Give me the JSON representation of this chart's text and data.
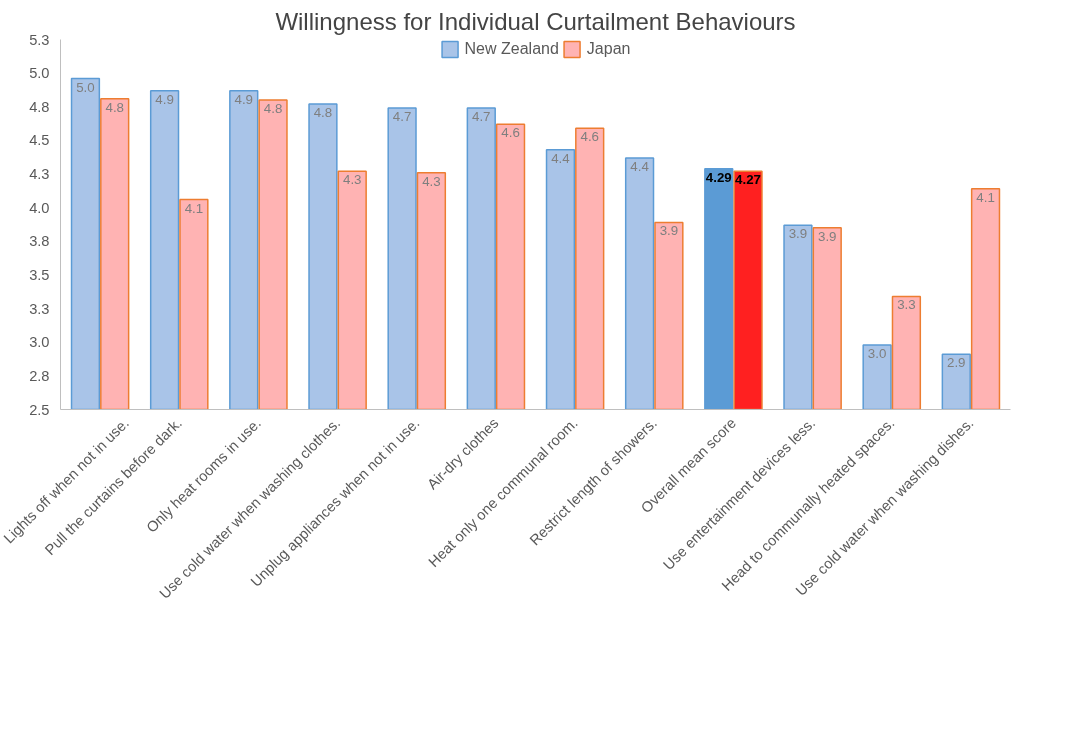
{
  "chart_data": {
    "type": "bar",
    "title": "Willingness for Individual Curtailment Behaviours",
    "categories": [
      "Lights off when not in use.",
      "Pull the curtains before dark.",
      "Only heat rooms in use.",
      "Use cold water when washing clothes.",
      "Unplug appliances when not in use.",
      "Air-dry clothes",
      "Heat only one communal room.",
      "Restrict length of showers.",
      "Overall mean score",
      "Use entertainment devices less.",
      "Head to communally heated spaces.",
      "Use cold water when washing dishes."
    ],
    "series": [
      {
        "name": "New Zealand",
        "color": "#a9c4e8",
        "colors": [
          "#a9c4e8",
          "#a9c4e8",
          "#a9c4e8",
          "#a9c4e8",
          "#a9c4e8",
          "#a9c4e8",
          "#a9c4e8",
          "#a9c4e8",
          "#5b9bd5",
          "#a9c4e8",
          "#a9c4e8",
          "#a9c4e8"
        ],
        "values": [
          4.96,
          4.87,
          4.87,
          4.77,
          4.74,
          4.74,
          4.43,
          4.37,
          4.29,
          3.87,
          2.98,
          2.91
        ],
        "value_labels": [
          "5.0",
          "4.9",
          "4.9",
          "4.8",
          "4.7",
          "4.7",
          "4.4",
          "4.4",
          "4.29",
          "3.9",
          "3.0",
          "2.9"
        ]
      },
      {
        "name": "Japan",
        "color": "#ffb3b3",
        "colors": [
          "#ffb3b3",
          "#ffb3b3",
          "#ffb3b3",
          "#ffb3b3",
          "#ffb3b3",
          "#ffb3b3",
          "#ffb3b3",
          "#ffb3b3",
          "#ff2020",
          "#ffb3b3",
          "#ffb3b3",
          "#ffb3b3"
        ],
        "values": [
          4.81,
          4.06,
          4.8,
          4.27,
          4.26,
          4.62,
          4.59,
          3.89,
          4.27,
          3.85,
          3.34,
          4.14
        ],
        "value_labels": [
          "4.8",
          "4.1",
          "4.8",
          "4.3",
          "4.3",
          "4.6",
          "4.6",
          "3.9",
          "4.27",
          "3.9",
          "3.3",
          "4.1"
        ]
      }
    ],
    "ylim": [
      2.5,
      5.25
    ],
    "yticks": [
      {
        "value": 2.5,
        "label": "2.5"
      },
      {
        "value": 2.75,
        "label": "2.8"
      },
      {
        "value": 3,
        "label": "3.0"
      },
      {
        "value": 3.25,
        "label": "3.3"
      },
      {
        "value": 3.5,
        "label": "3.5"
      },
      {
        "value": 3.75,
        "label": "3.8"
      },
      {
        "value": 4,
        "label": "4.0"
      },
      {
        "value": 4.25,
        "label": "4.3"
      },
      {
        "value": 4.5,
        "label": "4.5"
      },
      {
        "value": 4.75,
        "label": "4.8"
      },
      {
        "value": 5,
        "label": "5.0"
      },
      {
        "value": 5.25,
        "label": "5.3"
      }
    ],
    "legend": "top",
    "grid": false
  }
}
